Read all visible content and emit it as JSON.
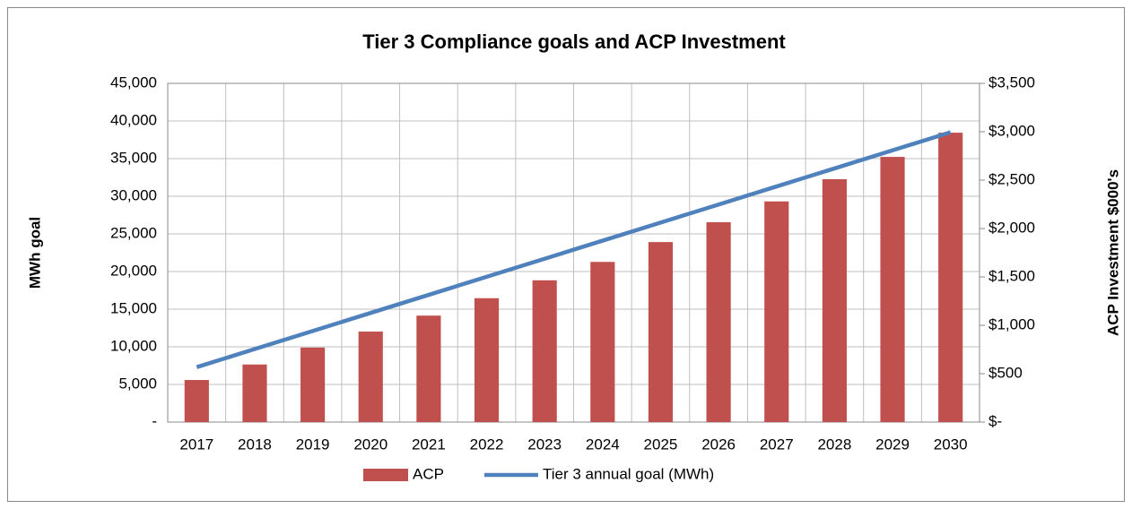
{
  "chart_data": {
    "type": "bar_line",
    "title": "Tier 3 Compliance goals and ACP Investment",
    "ylabel": "MWh goal",
    "y2label": "ACP Investment $000's",
    "categories": [
      "2017",
      "2018",
      "2019",
      "2020",
      "2021",
      "2022",
      "2023",
      "2024",
      "2025",
      "2026",
      "2027",
      "2028",
      "2029",
      "2030"
    ],
    "series": [
      {
        "name": "ACP",
        "type": "bar",
        "axis": "y2",
        "color": "#c0504d",
        "values": [
          435,
          595,
          770,
          935,
          1100,
          1280,
          1465,
          1655,
          1860,
          2065,
          2280,
          2510,
          2740,
          2990
        ]
      },
      {
        "name": "Tier 3 annual goal (MWh)",
        "type": "line",
        "axis": "y",
        "color": "#4f81bd",
        "values": [
          7300,
          9700,
          12100,
          14500,
          16900,
          19300,
          21700,
          24100,
          26500,
          28900,
          31300,
          33700,
          36100,
          38500
        ]
      }
    ],
    "ylim": [
      0,
      45000
    ],
    "yticks": [
      {
        "value": 0,
        "label": "-"
      },
      {
        "value": 5000,
        "label": "5,000"
      },
      {
        "value": 10000,
        "label": "10,000"
      },
      {
        "value": 15000,
        "label": "15,000"
      },
      {
        "value": 20000,
        "label": "20,000"
      },
      {
        "value": 25000,
        "label": "25,000"
      },
      {
        "value": 30000,
        "label": "30,000"
      },
      {
        "value": 35000,
        "label": "35,000"
      },
      {
        "value": 40000,
        "label": "40,000"
      },
      {
        "value": 45000,
        "label": "45,000"
      }
    ],
    "y2lim": [
      0,
      3500
    ],
    "y2ticks": [
      {
        "value": 0,
        "label": "$-"
      },
      {
        "value": 500,
        "label": "$500"
      },
      {
        "value": 1000,
        "label": "$1,000"
      },
      {
        "value": 1500,
        "label": "$1,500"
      },
      {
        "value": 2000,
        "label": "$2,000"
      },
      {
        "value": 2500,
        "label": "$2,500"
      },
      {
        "value": 3000,
        "label": "$3,000"
      },
      {
        "value": 3500,
        "label": "$3,500"
      }
    ],
    "grid": true,
    "legend": "bottom"
  }
}
